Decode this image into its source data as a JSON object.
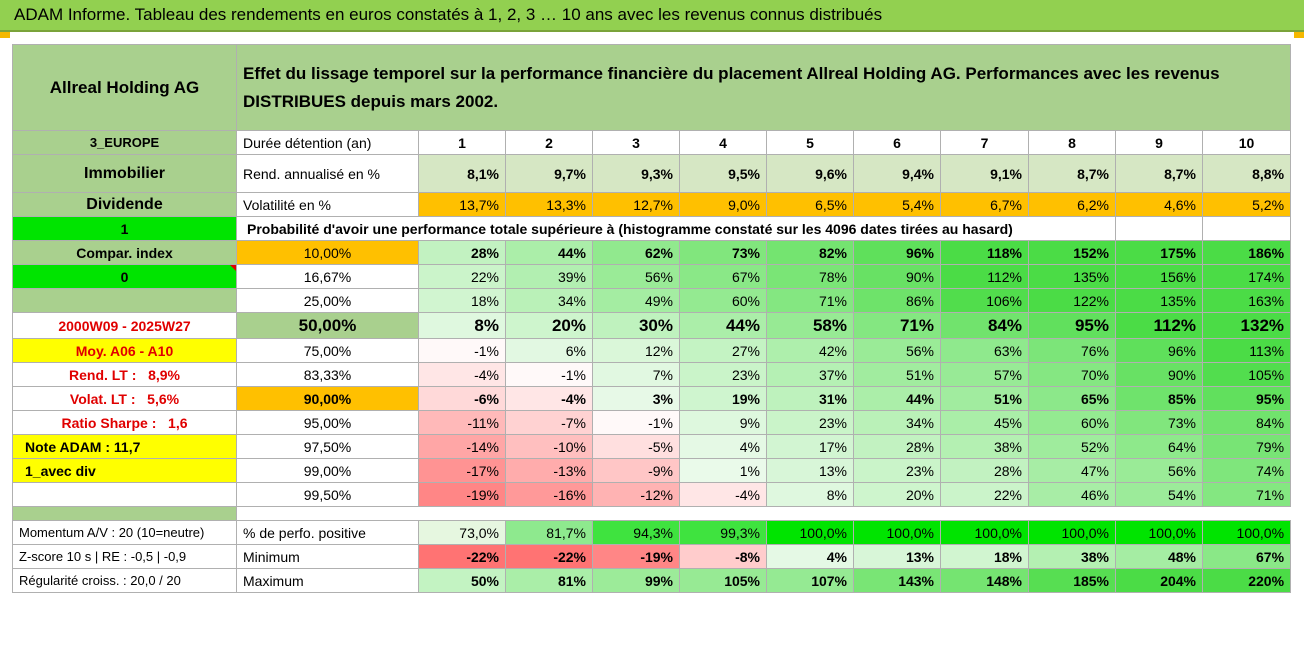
{
  "title": "ADAM Informe. Tableau des rendements en euros constatés à 1, 2, 3 … 10 ans avec les revenus connus distribués",
  "header": {
    "company": "Allreal Holding AG",
    "description": "Effet du lissage temporel sur la performance financière du placement Allreal Holding AG. Performances avec les revenus DISTRIBUES depuis mars 2002."
  },
  "colors": {
    "green_header": "#92d050",
    "green_light": "#a9d08e",
    "lime": "#00e400",
    "orange": "#ffc000",
    "yellow": "#ffff00",
    "red_text": "#e00000"
  },
  "left_labels": {
    "region": "3_EUROPE",
    "sector": "Immobilier",
    "dividend": "Dividende",
    "one": "1",
    "compar_index": "Compar. index",
    "zero": "0",
    "period": "2000W09 - 2025W27",
    "moy": "Moy. A06 - A10",
    "rend_lt_label": "Rend. LT :",
    "rend_lt_value": "8,9%",
    "volat_lt_label": "Volat. LT :",
    "volat_lt_value": "5,6%",
    "sharpe_label": "Ratio Sharpe :",
    "sharpe_value": "1,6",
    "note_adam": "Note ADAM : 11,7",
    "avec_div": "1_avec div",
    "momentum": "Momentum A/V : 20 (10=neutre)",
    "zscore": "Z-score 10 s | RE : -0,5 | -0,9",
    "regularite": "Régularité croiss. : 20,0 / 20"
  },
  "years_label": "Durée détention (an)",
  "years": [
    "1",
    "2",
    "3",
    "4",
    "5",
    "6",
    "7",
    "8",
    "9",
    "10"
  ],
  "rend_label": "Rend. annualisé en %",
  "rend": [
    "8,1%",
    "9,7%",
    "9,3%",
    "9,5%",
    "9,6%",
    "9,4%",
    "9,1%",
    "8,7%",
    "8,7%",
    "8,8%"
  ],
  "vol_label": "Volatilité en %",
  "vol": [
    "13,7%",
    "13,3%",
    "12,7%",
    "9,0%",
    "6,5%",
    "5,4%",
    "6,7%",
    "6,2%",
    "4,6%",
    "5,2%"
  ],
  "prob_title": "Probabilité d'avoir une performance totale supérieure à (histogramme constaté sur les 4096 dates tirées au hasard)",
  "quantiles": [
    {
      "q": "10,00%",
      "vals": [
        "28%",
        "44%",
        "62%",
        "73%",
        "82%",
        "96%",
        "118%",
        "152%",
        "175%",
        "186%"
      ]
    },
    {
      "q": "16,67%",
      "vals": [
        "22%",
        "39%",
        "56%",
        "67%",
        "78%",
        "90%",
        "112%",
        "135%",
        "156%",
        "174%"
      ]
    },
    {
      "q": "25,00%",
      "vals": [
        "18%",
        "34%",
        "49%",
        "60%",
        "71%",
        "86%",
        "106%",
        "122%",
        "135%",
        "163%"
      ]
    },
    {
      "q": "50,00%",
      "vals": [
        "8%",
        "20%",
        "30%",
        "44%",
        "58%",
        "71%",
        "84%",
        "95%",
        "112%",
        "132%"
      ]
    },
    {
      "q": "75,00%",
      "vals": [
        "-1%",
        "6%",
        "12%",
        "27%",
        "42%",
        "56%",
        "63%",
        "76%",
        "96%",
        "113%"
      ]
    },
    {
      "q": "83,33%",
      "vals": [
        "-4%",
        "-1%",
        "7%",
        "23%",
        "37%",
        "51%",
        "57%",
        "70%",
        "90%",
        "105%"
      ]
    },
    {
      "q": "90,00%",
      "vals": [
        "-6%",
        "-4%",
        "3%",
        "19%",
        "31%",
        "44%",
        "51%",
        "65%",
        "85%",
        "95%"
      ]
    },
    {
      "q": "95,00%",
      "vals": [
        "-11%",
        "-7%",
        "-1%",
        "9%",
        "23%",
        "34%",
        "45%",
        "60%",
        "73%",
        "84%"
      ]
    },
    {
      "q": "97,50%",
      "vals": [
        "-14%",
        "-10%",
        "-5%",
        "4%",
        "17%",
        "28%",
        "38%",
        "52%",
        "64%",
        "79%"
      ]
    },
    {
      "q": "99,00%",
      "vals": [
        "-17%",
        "-13%",
        "-9%",
        "1%",
        "13%",
        "23%",
        "28%",
        "47%",
        "56%",
        "74%"
      ]
    },
    {
      "q": "99,50%",
      "vals": [
        "-19%",
        "-16%",
        "-12%",
        "-4%",
        "8%",
        "20%",
        "22%",
        "46%",
        "54%",
        "71%"
      ]
    }
  ],
  "positive_label": "% de perfo. positive",
  "positive": [
    "73,0%",
    "81,7%",
    "94,3%",
    "99,3%",
    "100,0%",
    "100,0%",
    "100,0%",
    "100,0%",
    "100,0%",
    "100,0%"
  ],
  "min_label": "Minimum",
  "min": [
    "-22%",
    "-22%",
    "-19%",
    "-8%",
    "4%",
    "13%",
    "18%",
    "38%",
    "48%",
    "67%"
  ],
  "max_label": "Maximum",
  "max": [
    "50%",
    "81%",
    "99%",
    "105%",
    "107%",
    "143%",
    "148%",
    "185%",
    "204%",
    "220%"
  ]
}
